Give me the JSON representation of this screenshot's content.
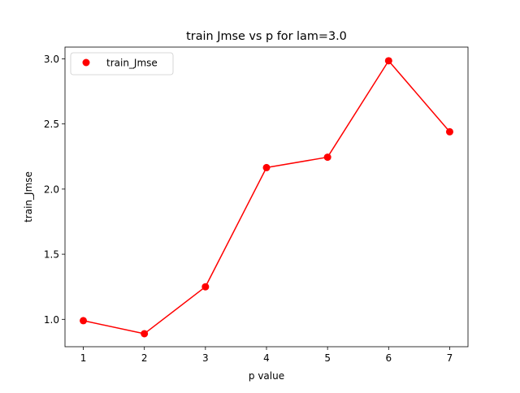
{
  "chart_data": {
    "type": "line",
    "title": "train Jmse vs p for lam=3.0",
    "xlabel": "p value",
    "ylabel": "train_Jmse",
    "x": [
      1,
      2,
      3,
      4,
      5,
      6,
      7
    ],
    "series": [
      {
        "name": "train_Jmse",
        "values": [
          0.99,
          0.89,
          1.25,
          2.165,
          2.245,
          2.985,
          2.44
        ],
        "color": "#ff0000",
        "marker": "circle"
      }
    ],
    "xlim": [
      0.7,
      7.3
    ],
    "ylim": [
      0.79,
      3.09
    ],
    "xticks": [
      1,
      2,
      3,
      4,
      5,
      6,
      7
    ],
    "xtick_labels": [
      "1",
      "2",
      "3",
      "4",
      "5",
      "6",
      "7"
    ],
    "yticks": [
      1.0,
      1.5,
      2.0,
      2.5,
      3.0
    ],
    "ytick_labels": [
      "1.0",
      "1.5",
      "2.0",
      "2.5",
      "3.0"
    ],
    "grid": false,
    "legend": {
      "placement": "top-left",
      "entries": [
        "train_Jmse"
      ]
    }
  }
}
